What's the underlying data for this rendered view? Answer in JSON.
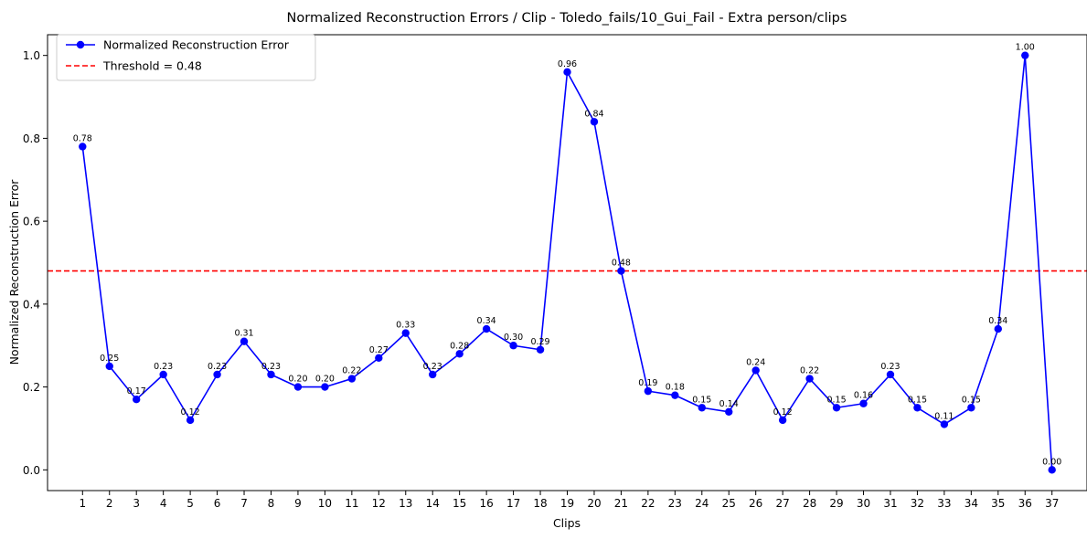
{
  "chart_data": {
    "type": "line",
    "title": "Normalized Reconstruction Errors / Clip - Toledo_fails/10_Gui_Fail - Extra person/clips",
    "xlabel": "Clips",
    "ylabel": "Normalized Reconstruction Error",
    "x": [
      1,
      2,
      3,
      4,
      5,
      6,
      7,
      8,
      9,
      10,
      11,
      12,
      13,
      14,
      15,
      16,
      17,
      18,
      19,
      20,
      21,
      22,
      23,
      24,
      25,
      26,
      27,
      28,
      29,
      30,
      31,
      32,
      33,
      34,
      35,
      36,
      37
    ],
    "x_tick_labels": [
      "1",
      "2",
      "3",
      "4",
      "5",
      "6",
      "7",
      "8",
      "9",
      "10",
      "11",
      "12",
      "13",
      "14",
      "15",
      "16",
      "17",
      "18",
      "19",
      "20",
      "21",
      "22",
      "23",
      "24",
      "25",
      "26",
      "27",
      "28",
      "29",
      "30",
      "31",
      "32",
      "33",
      "34",
      "35",
      "36",
      "37"
    ],
    "y_ticks": [
      0.0,
      0.2,
      0.4,
      0.6,
      0.8,
      1.0
    ],
    "y_tick_labels": [
      "0.0",
      "0.2",
      "0.4",
      "0.6",
      "0.8",
      "1.0"
    ],
    "xlim": [
      -0.3,
      38.3
    ],
    "ylim": [
      -0.05,
      1.05
    ],
    "grid": false,
    "legend_position": "top-left",
    "series": [
      {
        "name": "Normalized Reconstruction Error",
        "color": "#0000ff",
        "marker": "circle",
        "values": [
          0.78,
          0.25,
          0.17,
          0.23,
          0.12,
          0.23,
          0.31,
          0.23,
          0.2,
          0.2,
          0.22,
          0.27,
          0.33,
          0.23,
          0.28,
          0.34,
          0.3,
          0.29,
          0.96,
          0.84,
          0.48,
          0.19,
          0.18,
          0.15,
          0.14,
          0.24,
          0.12,
          0.22,
          0.15,
          0.16,
          0.23,
          0.15,
          0.11,
          0.15,
          0.34,
          1.0,
          0.0
        ],
        "value_labels": [
          "0.78",
          "0.25",
          "0.17",
          "0.23",
          "0.12",
          "0.23",
          "0.31",
          "0.23",
          "0.20",
          "0.20",
          "0.22",
          "0.27",
          "0.33",
          "0.23",
          "0.28",
          "0.34",
          "0.30",
          "0.29",
          "0.96",
          "0.84",
          "0.48",
          "0.19",
          "0.18",
          "0.15",
          "0.14",
          "0.24",
          "0.12",
          "0.22",
          "0.15",
          "0.16",
          "0.23",
          "0.15",
          "0.11",
          "0.15",
          "0.34",
          "1.00",
          "0.00"
        ]
      }
    ],
    "threshold": {
      "name": "Threshold = 0.48",
      "value": 0.48,
      "color": "#ff0000",
      "style": "dashed"
    }
  }
}
